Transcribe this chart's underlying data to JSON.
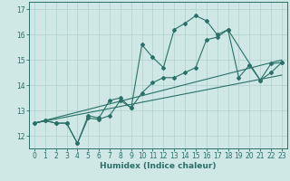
{
  "xlabel": "Humidex (Indice chaleur)",
  "bg_color": "#cfe8e5",
  "line_color": "#2a7068",
  "grid_color": "#aecfcb",
  "xlim": [
    -0.5,
    23.5
  ],
  "ylim": [
    11.5,
    17.3
  ],
  "yticks": [
    12,
    13,
    14,
    15,
    16,
    17
  ],
  "xticks": [
    0,
    1,
    2,
    3,
    4,
    5,
    6,
    7,
    8,
    9,
    10,
    11,
    12,
    13,
    14,
    15,
    16,
    17,
    18,
    19,
    20,
    21,
    22,
    23
  ],
  "line1_x": [
    0,
    1,
    2,
    3,
    4,
    5,
    6,
    7,
    8,
    9,
    10,
    11,
    12,
    13,
    14,
    15,
    16,
    17,
    18,
    21,
    22,
    23
  ],
  "line1_y": [
    12.5,
    12.6,
    12.5,
    12.5,
    11.7,
    12.7,
    12.65,
    12.8,
    13.4,
    13.1,
    15.6,
    15.1,
    14.7,
    16.2,
    16.45,
    16.75,
    16.55,
    16.0,
    16.2,
    14.2,
    14.85,
    14.9
  ],
  "line2_x": [
    0,
    1,
    2,
    3,
    4,
    5,
    6,
    7,
    8,
    9,
    10,
    11,
    12,
    13,
    14,
    15,
    16,
    17,
    18,
    19,
    20,
    21,
    22,
    23
  ],
  "line2_y": [
    12.5,
    12.6,
    12.5,
    12.5,
    11.7,
    12.8,
    12.7,
    13.4,
    13.5,
    13.1,
    13.7,
    14.1,
    14.3,
    14.3,
    14.5,
    14.7,
    15.8,
    15.9,
    16.2,
    14.3,
    14.8,
    14.2,
    14.5,
    14.9
  ],
  "line3_x": [
    0,
    23
  ],
  "line3_y": [
    12.5,
    15.0
  ],
  "line4_x": [
    0,
    23
  ],
  "line4_y": [
    12.5,
    14.4
  ]
}
